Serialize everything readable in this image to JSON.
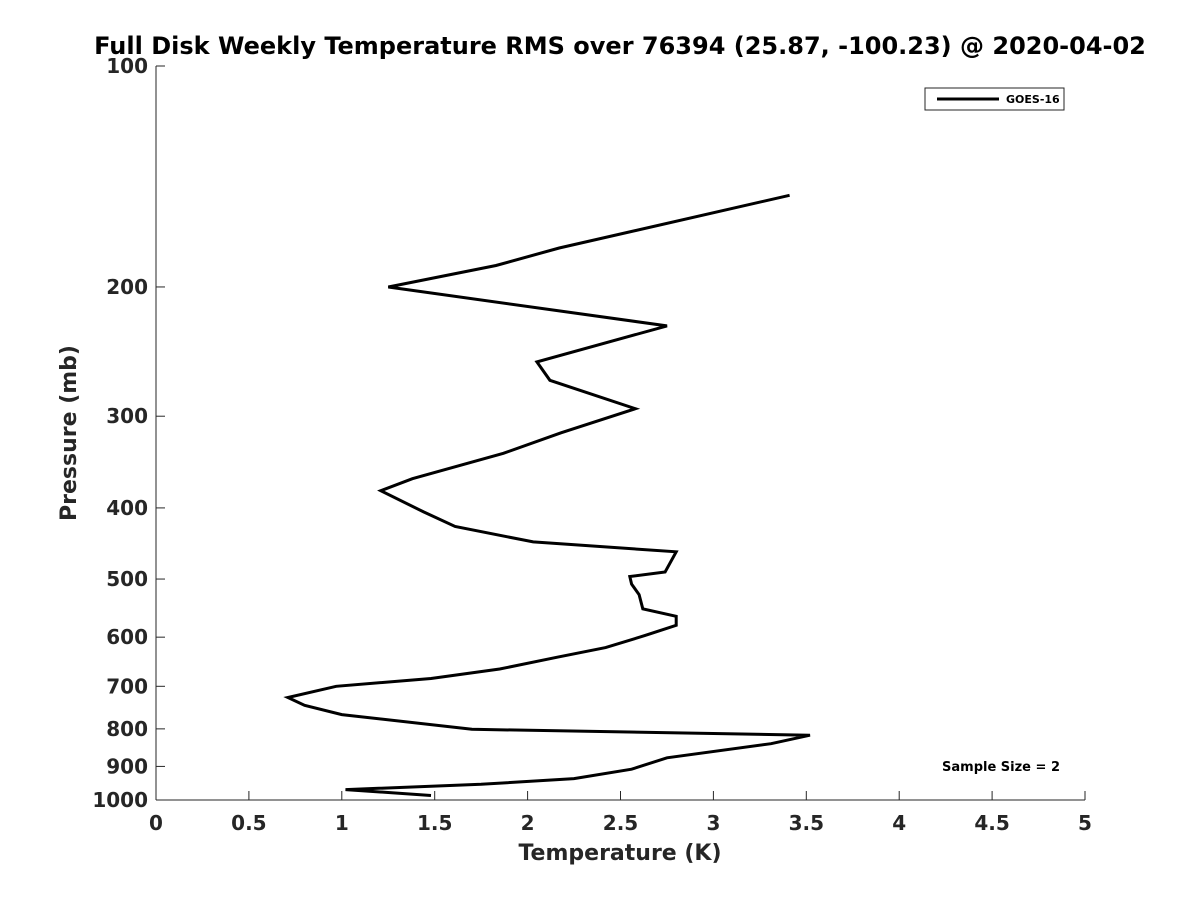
{
  "chart_data": {
    "type": "line",
    "title": "Full Disk Weekly Temperature RMS over 76394 (25.87, -100.23) @ 2020-04-02",
    "xlabel": "Temperature (K)",
    "ylabel": "Pressure (mb)",
    "xlim": [
      0,
      5
    ],
    "ylim": [
      100,
      1000
    ],
    "y_scale": "log",
    "y_reversed": true,
    "xticks": [
      "0",
      "0.5",
      "1",
      "1.5",
      "2",
      "2.5",
      "3",
      "3.5",
      "4",
      "4.5",
      "5"
    ],
    "yticks": [
      "100",
      "200",
      "300",
      "400",
      "500",
      "600",
      "700",
      "800",
      "900",
      "1000"
    ],
    "grid": false,
    "legend_position": "top-right",
    "annotation": "Sample Size = 2",
    "series": [
      {
        "name": "GOES-16",
        "color": "#000000",
        "points": [
          [
            3.41,
            150
          ],
          [
            2.17,
            177
          ],
          [
            1.83,
            187
          ],
          [
            1.25,
            200
          ],
          [
            2.75,
            226
          ],
          [
            2.05,
            253
          ],
          [
            2.12,
            268
          ],
          [
            2.58,
            293
          ],
          [
            2.18,
            316
          ],
          [
            1.87,
            337
          ],
          [
            1.38,
            365
          ],
          [
            1.21,
            379
          ],
          [
            1.44,
            405
          ],
          [
            1.61,
            424
          ],
          [
            2.03,
            445
          ],
          [
            2.8,
            459
          ],
          [
            2.74,
            489
          ],
          [
            2.55,
            496
          ],
          [
            2.56,
            508
          ],
          [
            2.6,
            525
          ],
          [
            2.62,
            549
          ],
          [
            2.8,
            562
          ],
          [
            2.8,
            578
          ],
          [
            2.63,
            597
          ],
          [
            2.42,
            620
          ],
          [
            2.16,
            639
          ],
          [
            1.85,
            663
          ],
          [
            1.48,
            683
          ],
          [
            0.97,
            700
          ],
          [
            0.71,
            725
          ],
          [
            0.8,
            743
          ],
          [
            1.0,
            765
          ],
          [
            1.7,
            801
          ],
          [
            3.52,
            816
          ],
          [
            3.31,
            838
          ],
          [
            2.75,
            876
          ],
          [
            2.56,
            908
          ],
          [
            2.25,
            935
          ],
          [
            1.75,
            952
          ],
          [
            1.02,
            968
          ],
          [
            1.48,
            986
          ]
        ]
      }
    ]
  }
}
